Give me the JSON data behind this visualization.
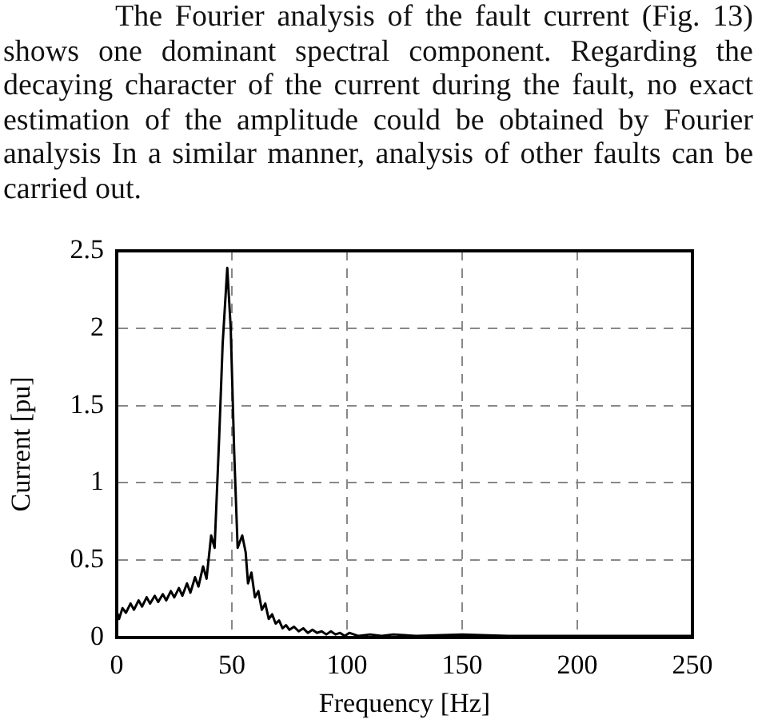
{
  "chart_data": {
    "type": "line",
    "xlabel": "Frequency [Hz]",
    "ylabel": "Current [pu]",
    "annotations": [
      "The Fourier analysis of the fault current (Fig. 13) shows one dominant spectral component. Regarding the decaying character of the current during the fault, no exact estimation of the amplitude could be obtained by Fourier analysis In a similar manner, analysis of other faults can be carried out."
    ],
    "x": [
      0,
      1,
      2.5,
      4,
      6,
      7.5,
      9.5,
      11,
      13,
      14.5,
      16.5,
      18,
      20,
      21.5,
      23.5,
      25,
      27,
      28.5,
      30.5,
      32,
      34,
      35.5,
      37.5,
      39,
      41,
      42.5,
      44.5,
      46,
      48,
      49.5,
      51,
      52.5,
      54.5,
      56,
      57,
      58.5,
      60,
      61.5,
      63,
      64.5,
      66,
      67.5,
      69,
      70.5,
      72,
      73.5,
      75,
      77,
      79,
      81,
      83,
      85,
      87,
      89,
      91,
      93,
      95,
      97,
      99,
      101,
      105,
      110,
      115,
      120,
      130,
      150,
      170,
      200,
      230,
      250
    ],
    "series": [
      {
        "color": "#000000",
        "values": [
          0.17,
          0.12,
          0.19,
          0.16,
          0.22,
          0.18,
          0.24,
          0.2,
          0.26,
          0.22,
          0.27,
          0.23,
          0.28,
          0.24,
          0.3,
          0.26,
          0.32,
          0.27,
          0.35,
          0.29,
          0.39,
          0.33,
          0.46,
          0.38,
          0.66,
          0.58,
          1.3,
          1.9,
          2.39,
          2.0,
          1.2,
          0.58,
          0.66,
          0.55,
          0.35,
          0.42,
          0.26,
          0.3,
          0.18,
          0.22,
          0.12,
          0.15,
          0.09,
          0.11,
          0.06,
          0.08,
          0.05,
          0.07,
          0.04,
          0.06,
          0.03,
          0.05,
          0.03,
          0.04,
          0.02,
          0.04,
          0.02,
          0.03,
          0.01,
          0.03,
          0.01,
          0.02,
          0.01,
          0.02,
          0.01,
          0.02,
          0.01,
          0.01,
          0.01,
          0.01
        ]
      }
    ],
    "xlim": [
      0,
      250
    ],
    "xticks": [
      0,
      50,
      100,
      150,
      200,
      250
    ],
    "ylim": [
      0,
      2.5
    ],
    "yticks": [
      0,
      0.5,
      1,
      1.5,
      2,
      2.5
    ],
    "grid": true,
    "marker": "none",
    "line_style": "solid"
  }
}
